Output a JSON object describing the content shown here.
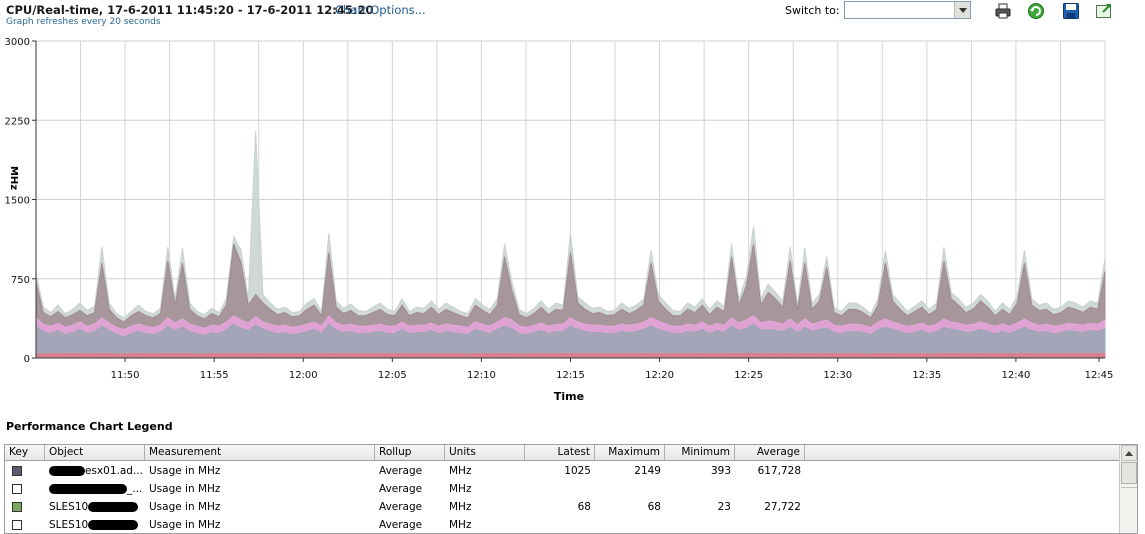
{
  "header": {
    "title": "CPU/Real-time, 17-6-2011 11:45:20 - 17-6-2011 12:45:20",
    "chart_options_link": "Chart Options...",
    "subtitle": "Graph refreshes every 20 seconds",
    "switch_to_label": "Switch to:",
    "switch_to_value": ""
  },
  "toolbar": {
    "icons": [
      "print-icon",
      "refresh-icon",
      "save-icon",
      "export-icon"
    ]
  },
  "chart_data": {
    "type": "area",
    "title": "",
    "xlabel": "Time",
    "ylabel": "MHz",
    "ylim": [
      0,
      3000
    ],
    "yticks": [
      "3000",
      "2250",
      "1500",
      "750",
      "0"
    ],
    "xticks": [
      "11:50",
      "11:55",
      "12:00",
      "12:05",
      "12:10",
      "12:15",
      "12:20",
      "12:25",
      "12:30",
      "12:35",
      "12:40",
      "12:45"
    ],
    "grid": true,
    "series": [
      {
        "name": "",
        "color": "#c8d2cc",
        "values": [
          800,
          480,
          430,
          500,
          420,
          460,
          520,
          450,
          490,
          1050,
          520,
          420,
          380,
          440,
          500,
          440,
          420,
          470,
          1050,
          560,
          1040,
          520,
          440,
          410,
          470,
          430,
          560,
          1150,
          1020,
          560,
          2150,
          600,
          520,
          460,
          480,
          430,
          440,
          520,
          560,
          440,
          1180,
          540,
          470,
          510,
          450,
          440,
          480,
          520,
          460,
          440,
          560,
          440,
          480,
          470,
          540,
          460,
          520,
          480,
          440,
          420,
          560,
          500,
          460,
          560,
          1080,
          720,
          460,
          420,
          470,
          540,
          460,
          520,
          500,
          1180,
          580,
          520,
          470,
          480,
          440,
          450,
          520,
          470,
          500,
          560,
          1020,
          600,
          520,
          450,
          440,
          520,
          480,
          560,
          460,
          540,
          490,
          1080,
          560,
          760,
          1250,
          560,
          700,
          620,
          540,
          1050,
          500,
          1040,
          520,
          600,
          960,
          480,
          440,
          520,
          520,
          480,
          420,
          560,
          1020,
          600,
          520,
          440,
          490,
          540,
          460,
          520,
          1050,
          620,
          560,
          480,
          520,
          600,
          540,
          440,
          520,
          460,
          580,
          1020,
          560,
          500,
          520,
          460,
          480,
          540,
          520,
          480,
          540,
          520,
          940
        ]
      },
      {
        "name": "",
        "color": "#a08a92",
        "values": [
          720,
          430,
          390,
          440,
          380,
          410,
          450,
          400,
          430,
          900,
          460,
          380,
          340,
          400,
          440,
          400,
          380,
          420,
          920,
          500,
          900,
          460,
          400,
          370,
          420,
          390,
          500,
          1080,
          900,
          500,
          600,
          520,
          460,
          410,
          430,
          390,
          400,
          460,
          500,
          400,
          1000,
          480,
          420,
          450,
          400,
          400,
          430,
          460,
          410,
          400,
          500,
          400,
          430,
          420,
          480,
          410,
          460,
          430,
          400,
          380,
          500,
          450,
          410,
          500,
          960,
          640,
          410,
          380,
          420,
          480,
          410,
          460,
          450,
          1000,
          520,
          460,
          420,
          430,
          400,
          410,
          460,
          420,
          450,
          500,
          900,
          540,
          460,
          400,
          400,
          460,
          430,
          500,
          410,
          480,
          440,
          960,
          500,
          680,
          1080,
          500,
          620,
          560,
          480,
          920,
          450,
          900,
          460,
          540,
          860,
          430,
          400,
          460,
          460,
          430,
          380,
          500,
          900,
          540,
          460,
          400,
          440,
          480,
          410,
          460,
          920,
          560,
          500,
          430,
          460,
          540,
          480,
          400,
          460,
          410,
          520,
          900,
          500,
          450,
          460,
          410,
          430,
          480,
          460,
          430,
          480,
          460,
          820
        ]
      },
      {
        "name": "",
        "color": "#e8a6dc",
        "values": [
          380,
          320,
          300,
          330,
          290,
          310,
          340,
          300,
          320,
          380,
          330,
          290,
          270,
          300,
          320,
          300,
          290,
          310,
          380,
          330,
          370,
          320,
          300,
          280,
          310,
          300,
          340,
          400,
          360,
          330,
          390,
          340,
          320,
          300,
          310,
          290,
          300,
          320,
          340,
          300,
          400,
          330,
          310,
          320,
          300,
          300,
          310,
          320,
          300,
          300,
          340,
          300,
          310,
          310,
          330,
          300,
          320,
          310,
          300,
          290,
          340,
          320,
          300,
          340,
          380,
          360,
          300,
          290,
          310,
          330,
          300,
          320,
          320,
          380,
          340,
          320,
          310,
          310,
          300,
          300,
          320,
          310,
          320,
          340,
          380,
          350,
          320,
          300,
          300,
          320,
          310,
          340,
          300,
          330,
          310,
          380,
          330,
          360,
          400,
          330,
          350,
          340,
          320,
          370,
          310,
          370,
          320,
          340,
          360,
          310,
          300,
          320,
          320,
          310,
          290,
          340,
          370,
          340,
          320,
          300,
          310,
          330,
          300,
          320,
          370,
          340,
          330,
          310,
          320,
          340,
          320,
          300,
          320,
          300,
          330,
          370,
          330,
          310,
          320,
          300,
          310,
          330,
          320,
          310,
          330,
          320,
          360
        ]
      },
      {
        "name": "",
        "color": "#9aa6b4",
        "values": [
          300,
          250,
          230,
          260,
          220,
          240,
          270,
          230,
          250,
          300,
          260,
          220,
          200,
          230,
          250,
          230,
          220,
          240,
          300,
          260,
          290,
          250,
          230,
          210,
          240,
          230,
          270,
          320,
          280,
          260,
          310,
          270,
          250,
          230,
          240,
          220,
          230,
          250,
          270,
          230,
          320,
          260,
          240,
          250,
          230,
          230,
          240,
          250,
          230,
          230,
          270,
          230,
          240,
          240,
          260,
          230,
          250,
          240,
          230,
          220,
          270,
          250,
          230,
          270,
          300,
          280,
          230,
          220,
          240,
          260,
          230,
          250,
          250,
          300,
          270,
          250,
          240,
          240,
          230,
          230,
          250,
          240,
          250,
          270,
          300,
          270,
          250,
          230,
          230,
          250,
          240,
          270,
          230,
          260,
          240,
          300,
          260,
          280,
          320,
          260,
          270,
          260,
          250,
          290,
          240,
          290,
          250,
          270,
          280,
          240,
          230,
          250,
          250,
          240,
          220,
          270,
          290,
          270,
          250,
          230,
          240,
          260,
          230,
          250,
          290,
          270,
          260,
          240,
          250,
          270,
          250,
          230,
          250,
          230,
          260,
          290,
          260,
          240,
          250,
          230,
          240,
          260,
          250,
          240,
          260,
          250,
          280
        ]
      },
      {
        "name": "",
        "color": "#e07a88",
        "values": [
          40,
          38,
          40,
          39,
          40,
          41,
          40,
          39,
          40,
          42,
          40,
          39,
          38,
          40,
          41,
          40,
          39,
          40,
          42,
          40,
          41,
          40,
          39,
          38,
          40,
          39,
          40,
          42,
          41,
          40,
          42,
          40,
          40,
          39,
          40,
          39,
          40,
          40,
          41,
          39,
          42,
          40,
          40,
          40,
          39,
          39,
          40,
          40,
          39,
          39,
          41,
          39,
          40,
          40,
          40,
          39,
          40,
          40,
          39,
          38,
          41,
          40,
          39,
          41,
          42,
          41,
          39,
          38,
          40,
          40,
          39,
          40,
          40,
          42,
          40,
          40,
          40,
          40,
          39,
          39,
          40,
          40,
          40,
          41,
          42,
          41,
          40,
          39,
          39,
          40,
          40,
          41,
          39,
          40,
          40,
          42,
          40,
          41,
          42,
          40,
          41,
          40,
          40,
          42,
          39,
          42,
          40,
          40,
          41,
          39,
          39,
          40,
          40,
          40,
          38,
          41,
          42,
          41,
          40,
          39,
          40,
          40,
          39,
          40,
          42,
          41,
          40,
          40,
          40,
          41,
          40,
          39,
          40,
          39,
          40,
          42,
          40,
          40,
          40,
          39,
          40,
          40,
          40,
          40,
          40,
          40,
          41
        ]
      }
    ]
  },
  "legend": {
    "title": "Performance Chart Legend",
    "columns": [
      "Key",
      "Object",
      "Measurement",
      "Rollup",
      "Units",
      "Latest",
      "Maximum",
      "Minimum",
      "Average"
    ],
    "rows": [
      {
        "key_color": "#5a5a6a",
        "object": "esx01.ad...",
        "measurement": "Usage in MHz",
        "rollup": "Average",
        "units": "MHz",
        "latest": "1025",
        "maximum": "2149",
        "minimum": "393",
        "average": "617,728"
      },
      {
        "key_color": "#ffffff",
        "object": "_...",
        "measurement": "Usage in MHz",
        "rollup": "Average",
        "units": "MHz",
        "latest": "",
        "maximum": "",
        "minimum": "",
        "average": ""
      },
      {
        "key_color": "#7aa860",
        "object": "SLES10",
        "measurement": "Usage in MHz",
        "rollup": "Average",
        "units": "MHz",
        "latest": "68",
        "maximum": "68",
        "minimum": "23",
        "average": "27,722"
      },
      {
        "key_color": "#ffffff",
        "object": "SLES10",
        "measurement": "Usage in MHz",
        "rollup": "Average",
        "units": "MHz",
        "latest": "",
        "maximum": "",
        "minimum": "",
        "average": ""
      }
    ]
  }
}
